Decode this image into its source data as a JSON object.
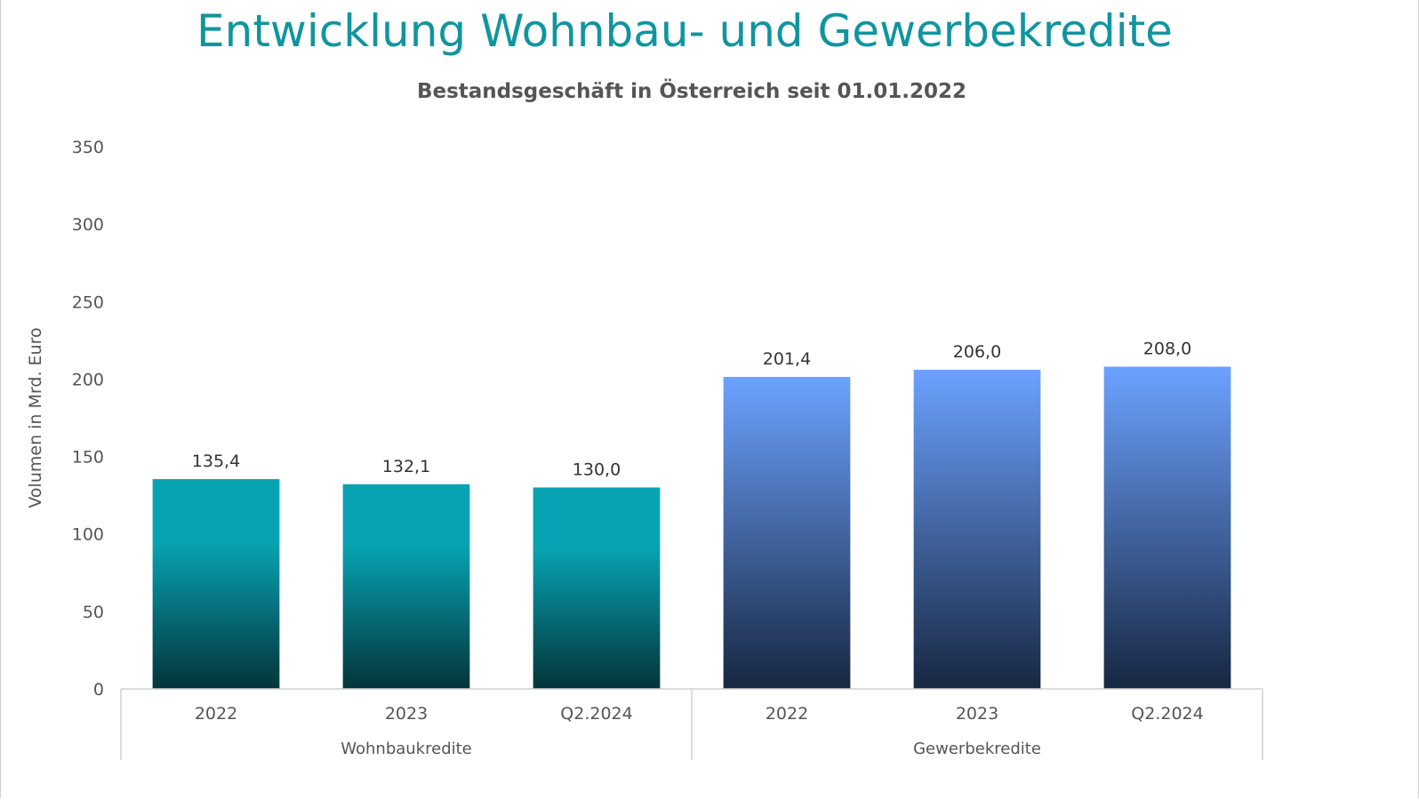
{
  "chart_data": {
    "type": "bar",
    "title": "Entwicklung Wohnbau- und Gewerbekredite",
    "subtitle": "Bestandsgeschäft in Österreich seit 01.01.2022",
    "ylabel": "Volumen in Mrd. Euro",
    "xlabel": "",
    "ylim": [
      0,
      350
    ],
    "yticks": [
      0,
      50,
      100,
      150,
      200,
      250,
      300,
      350
    ],
    "grid": false,
    "groups": [
      {
        "name": "Wohnbaukredite",
        "color_top": "#07a3b2",
        "color_bottom": "#04343a",
        "categories": [
          "2022",
          "2023",
          "Q2.2024"
        ],
        "values": [
          135.4,
          132.1,
          130.0
        ],
        "labels": [
          "135,4",
          "132,1",
          "130,0"
        ]
      },
      {
        "name": "Gewerbekredite",
        "color_top": "#6ca2ff",
        "color_bottom": "#172741",
        "categories": [
          "2022",
          "2023",
          "Q2.2024"
        ],
        "values": [
          201.4,
          206.0,
          208.0
        ],
        "labels": [
          "201,4",
          "206,0",
          "208,0"
        ]
      }
    ]
  }
}
